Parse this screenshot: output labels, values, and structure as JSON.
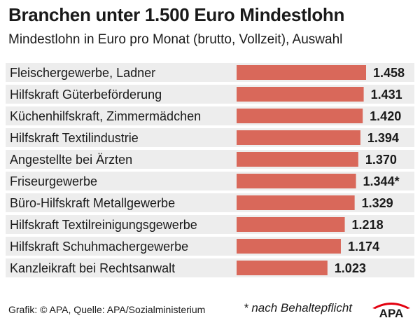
{
  "chart_data": {
    "type": "bar",
    "orientation": "horizontal",
    "title": "Branchen unter 1.500 Euro Mindestlohn",
    "subtitle": "Mindestlohn in Euro pro Monat (brutto, Vollzeit), Auswahl",
    "categories": [
      "Fleischergewerbe, Ladner",
      "Hilfskraft Güterbeförderung",
      "Küchenhilfskraft, Zimmermädchen",
      "Hilfskraft Textilindustrie",
      "Angestellte bei Ärzten",
      "Friseurgewerbe",
      "Büro-Hilfskraft Metallgewerbe",
      "Hilfskraft Textilreinigungsgewerbe",
      "Hilfskraft Schuhmachergewerbe",
      "Kanzleikraft bei Rechtsanwalt"
    ],
    "values": [
      1458,
      1431,
      1420,
      1394,
      1370,
      1344,
      1329,
      1218,
      1174,
      1023
    ],
    "value_labels": [
      "1.458",
      "1.431",
      "1.420",
      "1.394",
      "1.370",
      "1.344*",
      "1.329",
      "1.218",
      "1.174",
      "1.023"
    ],
    "footnote": "* nach Behaltepflicht",
    "source": "Grafik: © APA, Quelle: APA/Sozialministerium",
    "colors": {
      "bar": "#d9685a",
      "row_band": "#ededed",
      "text": "#1a1a1a"
    }
  },
  "logo": {
    "text": "APA",
    "color": "#e3000f"
  }
}
